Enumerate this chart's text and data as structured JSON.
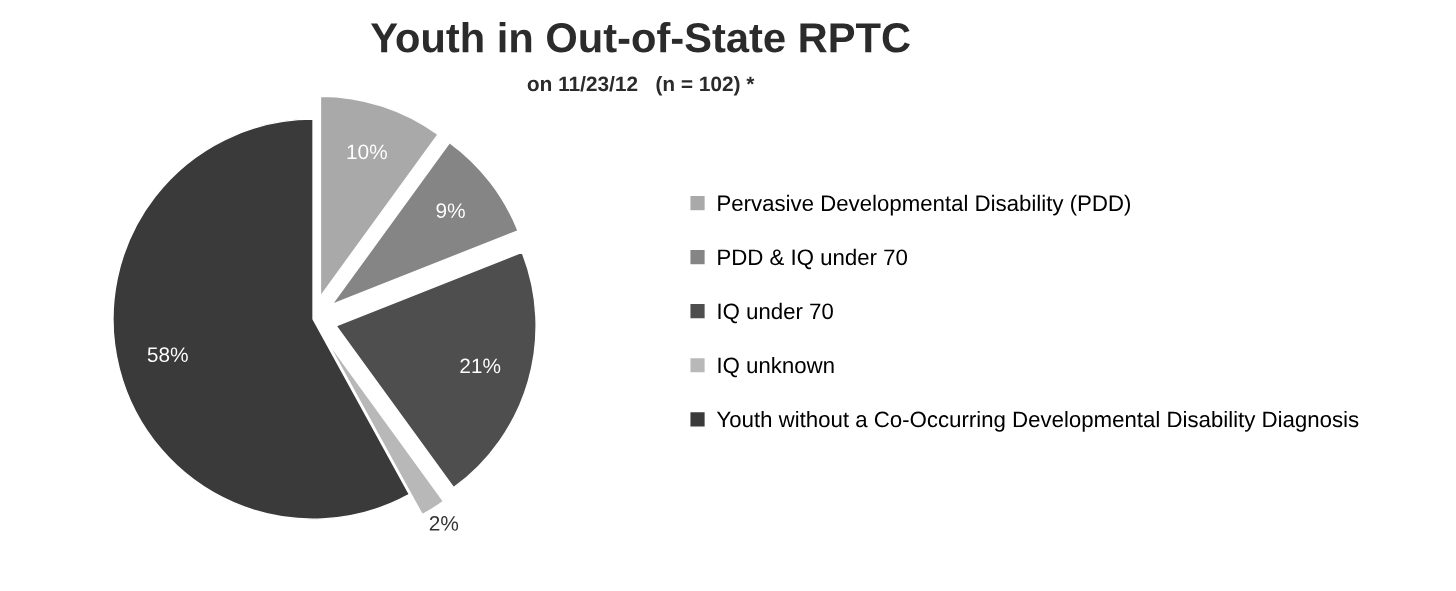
{
  "chart_data": {
    "type": "pie",
    "title": "Youth in Out-of-State RPTC",
    "subtitle": "on 11/23/12   (n = 102) *",
    "categories": [
      "Pervasive Developmental Disability (PDD)",
      "PDD & IQ under 70",
      "IQ under 70",
      "IQ unknown",
      "Youth without a Co-Occurring Developmental Disability Diagnosis"
    ],
    "values": [
      10,
      9,
      21,
      2,
      58
    ],
    "value_labels": [
      "10%",
      "9%",
      "21%",
      "2%",
      "58%"
    ],
    "colors": [
      "#a9a9a9",
      "#858585",
      "#4e4e4e",
      "#b8b8b8",
      "#3a3a3a"
    ],
    "legend": "right"
  }
}
